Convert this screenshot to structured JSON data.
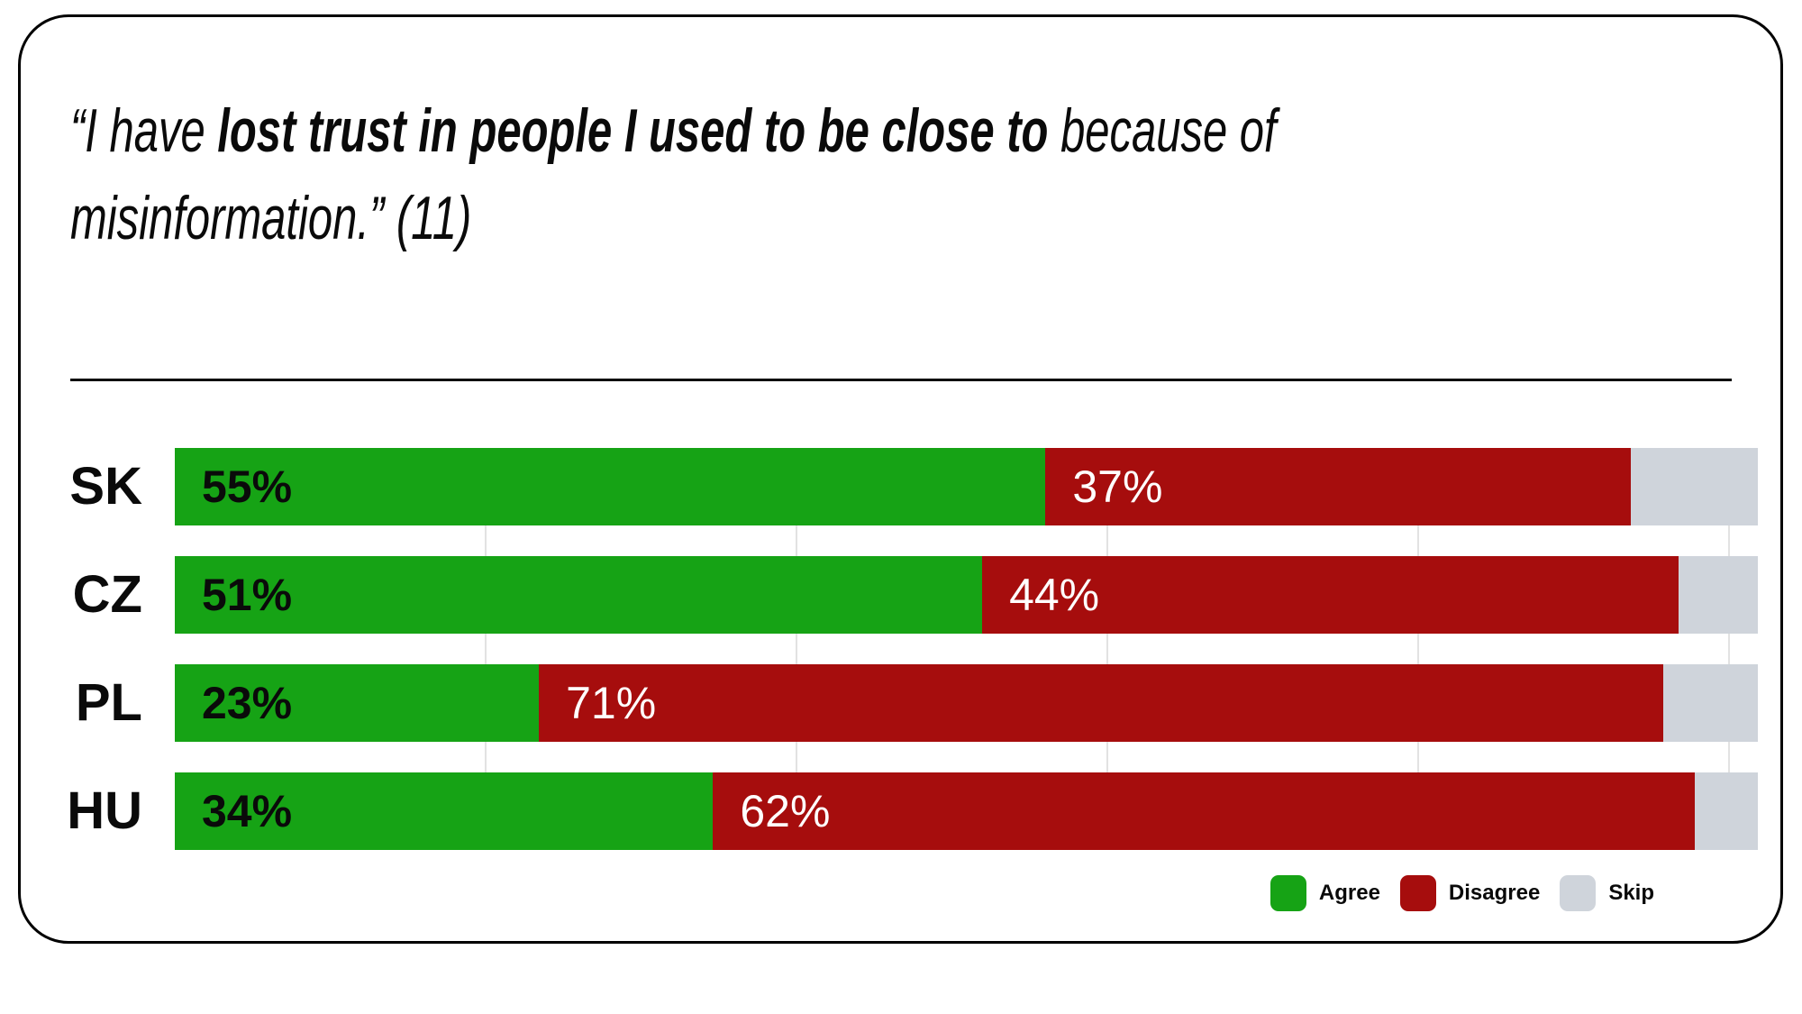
{
  "card": {
    "title": {
      "line1_prefix": "“I have ",
      "line1_bold": "lost trust in people I used to be close to",
      "line1_suffix": " because of",
      "line2": "misinformation.” (11)"
    }
  },
  "chart_data": {
    "type": "bar",
    "orientation": "horizontal",
    "stacked": true,
    "title": "“I have lost trust in people I used to be close to because of misinformation.” (11)",
    "unit": "%",
    "categories": [
      "SK",
      "CZ",
      "PL",
      "HU"
    ],
    "series": [
      {
        "name": "Agree",
        "color": "#16A315",
        "values": [
          55,
          51,
          23,
          34
        ],
        "labels_shown": true
      },
      {
        "name": "Disagree",
        "color": "#A60D0D",
        "values": [
          37,
          44,
          71,
          62
        ],
        "labels_shown": true
      },
      {
        "name": "Skip",
        "color": "#CFD4DB",
        "values": [
          8,
          5,
          6,
          4
        ],
        "labels_shown": false
      }
    ],
    "xlim": [
      0,
      100
    ],
    "gridlines_percent": [
      20,
      40,
      60,
      80,
      100
    ],
    "grid": true,
    "legend_position": "bottom-right"
  },
  "legend": {
    "items": [
      {
        "label": "Agree",
        "color": "#16A315"
      },
      {
        "label": "Disagree",
        "color": "#A60D0D"
      },
      {
        "label": "Skip",
        "color": "#CFD4DB"
      }
    ]
  },
  "colors": {
    "agree": "#16A315",
    "disagree": "#A60D0D",
    "skip": "#CFD4DB",
    "gridline": "#E2E2E2",
    "text": "#0A0A0A",
    "card_border": "#000000",
    "background": "#FFFFFF"
  }
}
